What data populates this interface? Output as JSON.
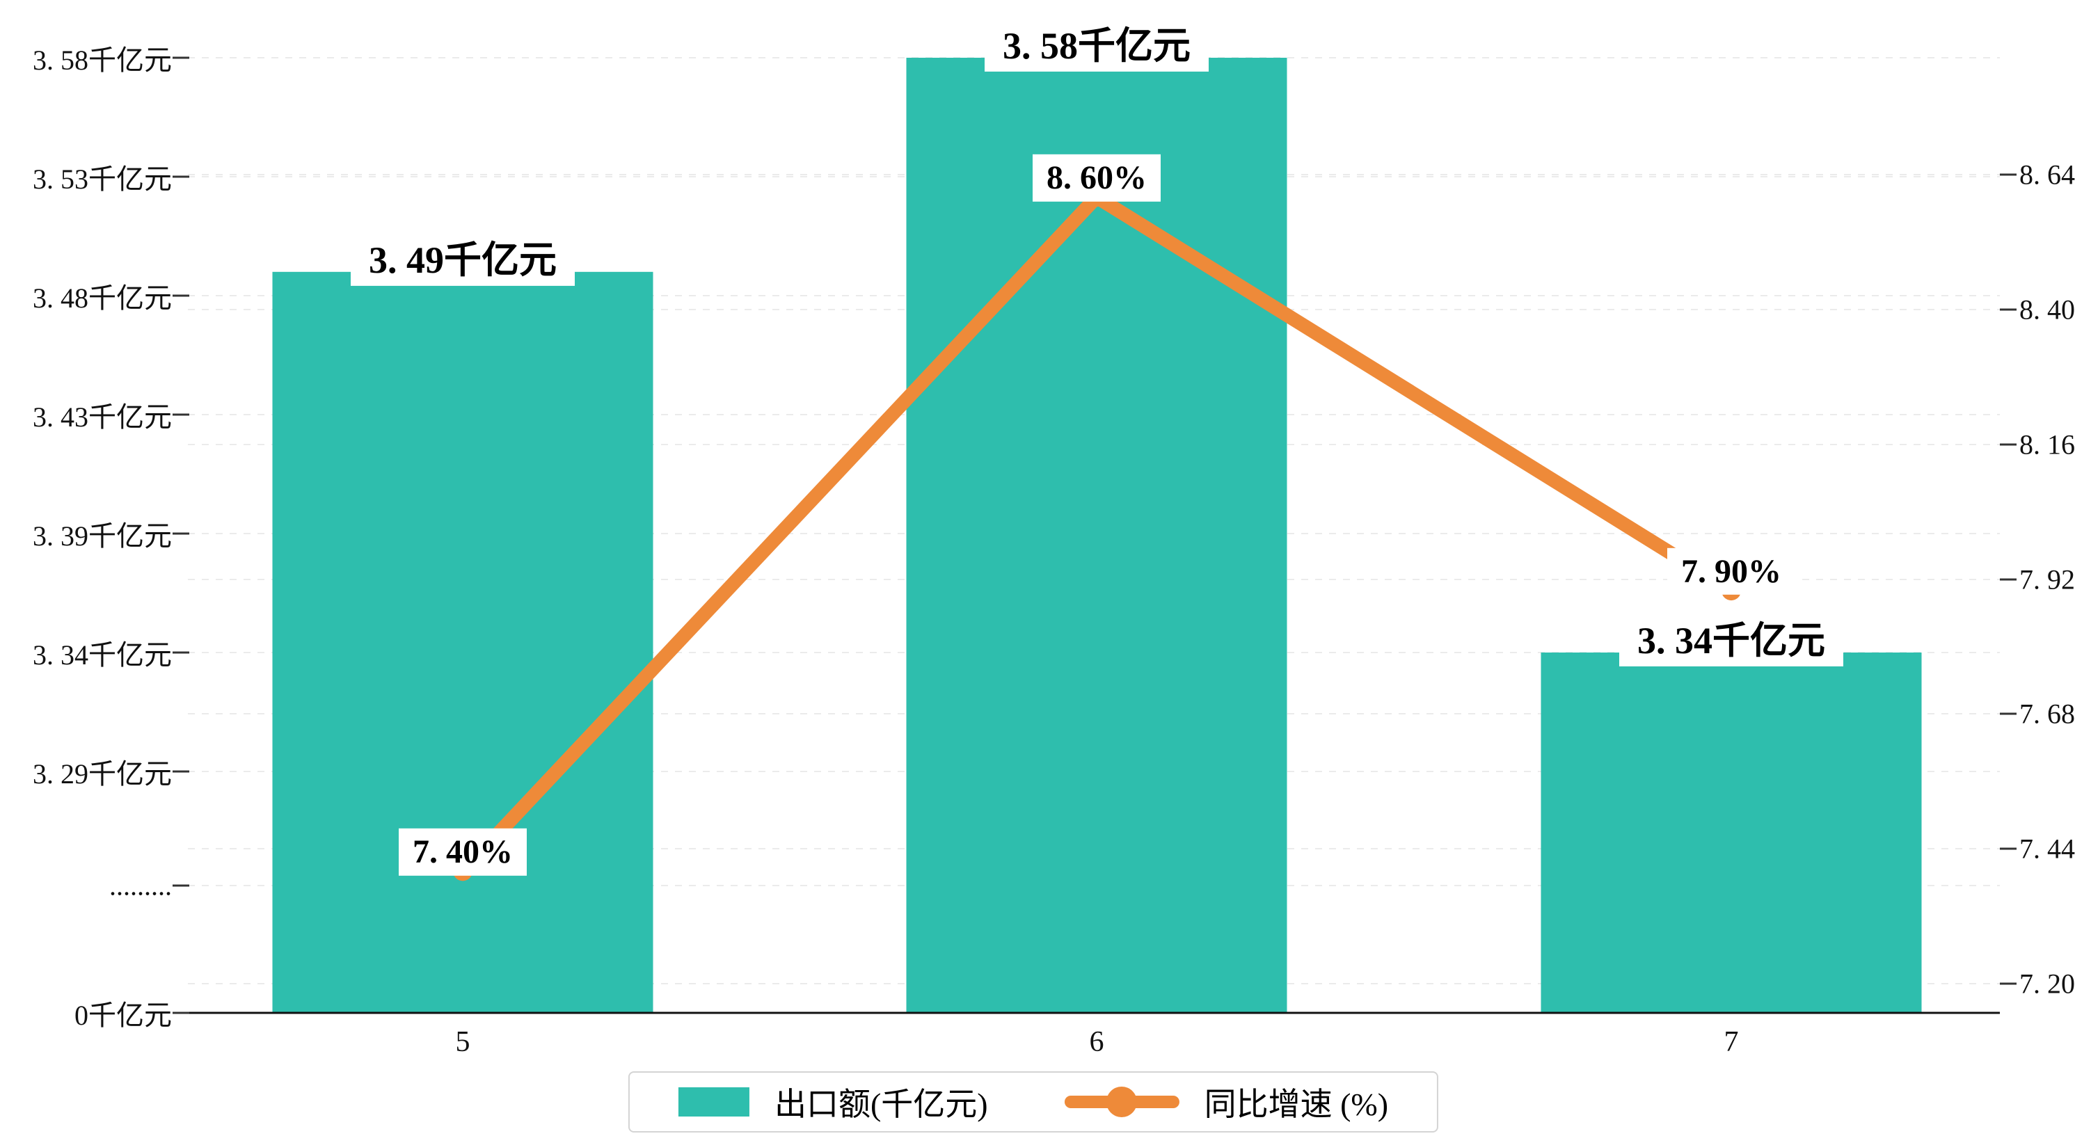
{
  "chart_data": {
    "type": "bar",
    "subtype": "bar+line combo, dual y-axis, broken left axis",
    "categories": [
      "5",
      "6",
      "7"
    ],
    "series": [
      {
        "name": "出口额(千亿元)",
        "type": "bar",
        "color": "#2EBEAD",
        "values": [
          3.49,
          3.58,
          3.34
        ],
        "data_labels": [
          "3. 49千亿元",
          "3. 58千亿元",
          "3. 34千亿元"
        ],
        "axis": "left"
      },
      {
        "name": "同比增速 (%)",
        "type": "line",
        "color": "#EE8A39",
        "values": [
          7.4,
          8.6,
          7.9
        ],
        "data_labels": [
          "7. 40%",
          "8. 60%",
          "7. 90%"
        ],
        "axis": "right",
        "marker": "circle"
      }
    ],
    "left_axis": {
      "tick_labels": [
        "3. 58千亿元",
        "3. 53千亿元",
        "3. 48千亿元",
        "3. 43千亿元",
        "3. 39千亿元",
        "3. 34千亿元",
        "3. 29千亿元",
        ".........",
        "0千亿元"
      ],
      "tick_values": [
        3.58,
        3.53,
        3.48,
        3.43,
        3.39,
        3.34,
        3.29,
        null,
        0
      ],
      "axis_break": true
    },
    "right_axis": {
      "tick_labels": [
        "8. 64",
        "8. 40",
        "8. 16",
        "7. 92",
        "7. 68",
        "7. 44",
        "7. 20"
      ],
      "tick_values": [
        8.64,
        8.4,
        8.16,
        7.92,
        7.68,
        7.44,
        7.2
      ]
    },
    "x_axis": {
      "tick_labels": [
        "5",
        "6",
        "7"
      ]
    },
    "legend": [
      {
        "label": "出口额(千亿元)",
        "marker": "bar-swatch",
        "color": "#2EBEAD"
      },
      {
        "label": "同比增速 (%)",
        "marker": "line-with-dot",
        "color": "#EE8A39"
      }
    ],
    "grid": "horizontal dashed lines",
    "legend_position": "bottom center",
    "background": "#ffffff"
  },
  "colors": {
    "bar": "#2EBEAD",
    "line": "#EE8A39",
    "grid": "#ebebeb",
    "axis": "#111111",
    "tick": "#333333",
    "text": "#000000",
    "label_bg": "#ffffff",
    "legend_border": "#d4d4d4"
  }
}
